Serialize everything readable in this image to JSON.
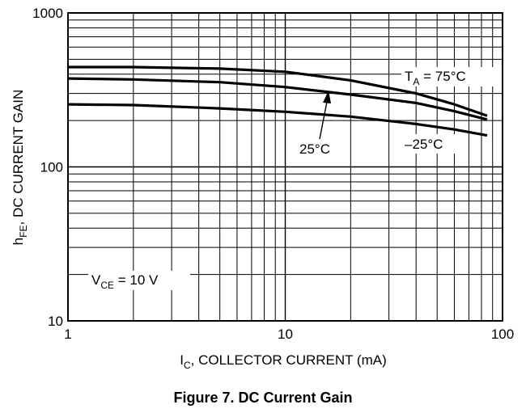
{
  "chart_data": {
    "type": "line",
    "x_scale": "log",
    "y_scale": "log",
    "xlim": [
      1,
      100
    ],
    "ylim": [
      10,
      1000
    ],
    "grid": true,
    "x_ticks": [
      "1",
      "10",
      "100"
    ],
    "y_ticks": [
      "10",
      "100",
      "1000"
    ],
    "xlabel": {
      "main": "I",
      "sub": "C",
      "rest": ", COLLECTOR CURRENT (mA)"
    },
    "ylabel": {
      "main": "h",
      "sub": "FE",
      "rest": ", DC CURRENT GAIN"
    },
    "series": [
      {
        "name": "T_A = 75°C",
        "x": [
          1,
          2,
          5,
          10,
          20,
          40,
          60,
          85
        ],
        "y": [
          445,
          445,
          435,
          415,
          365,
          300,
          255,
          215
        ]
      },
      {
        "name": "25°C",
        "x": [
          1,
          2,
          5,
          10,
          20,
          40,
          60,
          85
        ],
        "y": [
          375,
          370,
          355,
          330,
          295,
          260,
          230,
          203
        ]
      },
      {
        "name": "–25°C",
        "x": [
          1,
          2,
          5,
          10,
          20,
          40,
          60,
          85
        ],
        "y": [
          255,
          252,
          240,
          228,
          212,
          190,
          175,
          160
        ]
      }
    ],
    "annotations": {
      "t75": {
        "main": "T",
        "sub": "A",
        "rest": " = 75°C"
      },
      "t25": "25°C",
      "tm25": "–25°C",
      "vce": {
        "main": "V",
        "sub": "CE",
        "rest": " = 10 V"
      }
    }
  },
  "caption": "Figure 7. DC Current Gain"
}
